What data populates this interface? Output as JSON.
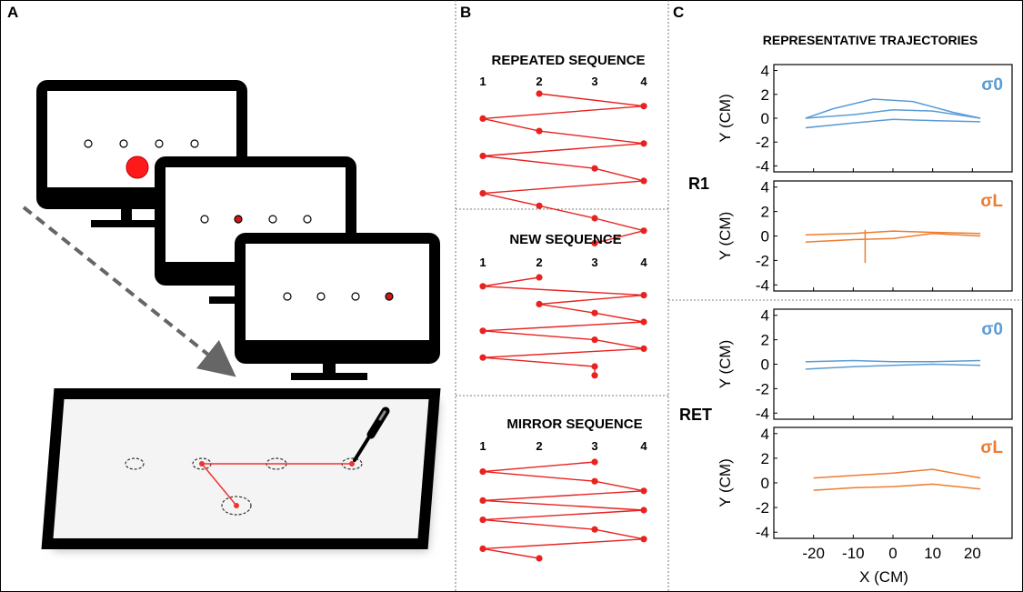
{
  "panels": {
    "a": "A",
    "b": "B",
    "c": "C"
  },
  "panel_b": {
    "position_labels": [
      "1",
      "2",
      "3",
      "4"
    ],
    "sequences": [
      {
        "title": "REPEATED SEQUENCE",
        "order": [
          2,
          4,
          1,
          2,
          4,
          1,
          3,
          4,
          1,
          2,
          3,
          4,
          3
        ]
      },
      {
        "title": "NEW SEQUENCE",
        "order": [
          2,
          1,
          4,
          2,
          3,
          4,
          1,
          3,
          4,
          1,
          3,
          3
        ]
      },
      {
        "title": "MIRROR SEQUENCE",
        "order": [
          3,
          1,
          3,
          4,
          1,
          4,
          1,
          3,
          4,
          1,
          2
        ]
      }
    ],
    "colors": {
      "sequence": "#e8221f"
    }
  },
  "panel_c": {
    "title": "REPRESENTATIVE TRAJECTORIES",
    "row_labels": [
      "R1",
      "RET"
    ],
    "condition_labels": [
      "σ0",
      "σL",
      "σ0",
      "σL"
    ],
    "ylabel": "Y (CM)",
    "xlabel": "X (CM)",
    "colors": {
      "sigma0": "#5a9bd5",
      "sigmaL": "#ed7d31"
    }
  },
  "chart_data": {
    "type": "line",
    "title": "REPRESENTATIVE TRAJECTORIES",
    "xlabel": "X (CM)",
    "ylabel": "Y (CM)",
    "xlim": [
      -30,
      30
    ],
    "ylim": [
      -4.5,
      4.5
    ],
    "xticks": [
      -20,
      -10,
      0,
      10,
      20
    ],
    "yticks": [
      -4,
      -2,
      0,
      2,
      4
    ],
    "grid": false,
    "subplots": [
      {
        "row": "R1",
        "condition": "σ0",
        "color": "#5a9bd5",
        "series": [
          {
            "x": [
              -22,
              -10,
              0,
              10,
              22
            ],
            "y": [
              0.0,
              0.3,
              0.7,
              0.6,
              0.0
            ]
          },
          {
            "x": [
              -22,
              -15,
              -5,
              5,
              15,
              22
            ],
            "y": [
              0.0,
              0.8,
              1.6,
              1.4,
              0.5,
              0.0
            ]
          },
          {
            "x": [
              -22,
              -10,
              0,
              10,
              22
            ],
            "y": [
              -0.8,
              -0.4,
              -0.1,
              -0.2,
              -0.3
            ]
          }
        ]
      },
      {
        "row": "R1",
        "condition": "σL",
        "color": "#ed7d31",
        "series": [
          {
            "x": [
              -22,
              -10,
              0,
              10,
              22
            ],
            "y": [
              0.1,
              0.2,
              0.4,
              0.3,
              0.2
            ]
          },
          {
            "x": [
              -22,
              -10,
              0,
              10,
              22
            ],
            "y": [
              -0.5,
              -0.3,
              -0.2,
              0.2,
              0.0
            ]
          },
          {
            "x": [
              -7,
              -7,
              -7
            ],
            "y": [
              0.5,
              -1.0,
              -2.2
            ]
          }
        ]
      },
      {
        "row": "RET",
        "condition": "σ0",
        "color": "#5a9bd5",
        "series": [
          {
            "x": [
              -22,
              -10,
              0,
              10,
              22
            ],
            "y": [
              0.2,
              0.3,
              0.2,
              0.2,
              0.3
            ]
          },
          {
            "x": [
              -22,
              -10,
              0,
              10,
              22
            ],
            "y": [
              -0.4,
              -0.2,
              -0.1,
              0.0,
              -0.1
            ]
          }
        ]
      },
      {
        "row": "RET",
        "condition": "σL",
        "color": "#ed7d31",
        "series": [
          {
            "x": [
              -20,
              -10,
              0,
              10,
              22
            ],
            "y": [
              0.4,
              0.6,
              0.8,
              1.1,
              0.4
            ]
          },
          {
            "x": [
              -20,
              -10,
              0,
              10,
              22
            ],
            "y": [
              -0.6,
              -0.4,
              -0.3,
              -0.1,
              -0.5
            ]
          }
        ]
      }
    ]
  }
}
